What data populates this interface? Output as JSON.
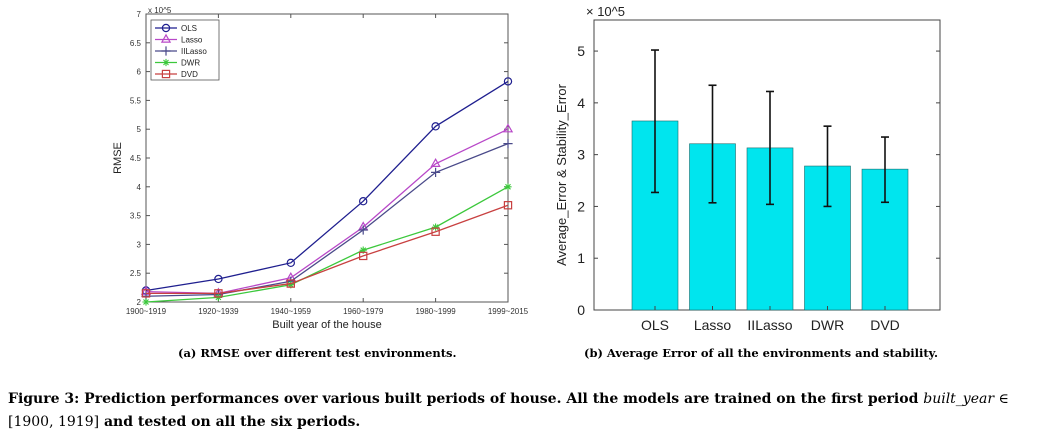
{
  "chart_data": [
    {
      "type": "line",
      "title": "",
      "xlabel": "Built year of the house",
      "ylabel": "RMSE",
      "exponent_label": "x 10^5",
      "categories": [
        "1900~1919",
        "1920~1939",
        "1940~1959",
        "1960~1979",
        "1980~1999",
        "1999~2015"
      ],
      "ylim": [
        2,
        7
      ],
      "yticks": [
        2,
        2.5,
        3,
        3.5,
        4,
        4.5,
        5,
        5.5,
        6,
        6.5,
        7
      ],
      "grid": false,
      "legend_position": "top-left",
      "series": [
        {
          "name": "OLS",
          "color": "#1f1f8f",
          "marker": "circle",
          "values": [
            2.2,
            2.4,
            2.68,
            3.75,
            5.05,
            5.83
          ]
        },
        {
          "name": "Lasso",
          "color": "#b848c8",
          "marker": "triangle",
          "values": [
            2.18,
            2.15,
            2.42,
            3.3,
            4.4,
            5.0
          ]
        },
        {
          "name": "IILasso",
          "color": "#4a4a8a",
          "marker": "plus",
          "values": [
            2.1,
            2.13,
            2.36,
            3.25,
            4.25,
            4.75
          ]
        },
        {
          "name": "DWR",
          "color": "#3cc83c",
          "marker": "star",
          "values": [
            2.0,
            2.08,
            2.3,
            2.9,
            3.3,
            4.0
          ]
        },
        {
          "name": "DVD",
          "color": "#c84040",
          "marker": "square",
          "values": [
            2.15,
            2.15,
            2.32,
            2.8,
            3.22,
            3.68
          ]
        }
      ]
    },
    {
      "type": "bar",
      "title": "",
      "xlabel": "",
      "ylabel": "Average_Error & Stability_Error",
      "exponent_label": "× 10^5",
      "categories": [
        "OLS",
        "Lasso",
        "IILasso",
        "DWR",
        "DVD"
      ],
      "values": [
        3.65,
        3.21,
        3.13,
        2.78,
        2.72
      ],
      "error_low": [
        2.27,
        2.07,
        2.04,
        2.0,
        2.08
      ],
      "error_high": [
        5.02,
        4.34,
        4.22,
        3.55,
        3.34
      ],
      "ylim": [
        0,
        5.6
      ],
      "yticks": [
        0,
        1,
        2,
        3,
        4,
        5
      ],
      "bar_color": "#00e5ee",
      "grid": false
    }
  ],
  "captions": {
    "a": "(a) RMSE over different test environments.",
    "b": "(b) Average Error of all the environments and stability.",
    "main_bold_1": "Figure 3: Prediction performances over various built periods of house. All the models are trained on the first period ",
    "main_ital": "built_year",
    "main_sym": " ∈",
    "main_plain": "[1900, 1919]",
    "main_bold_2": " and tested on all the six periods."
  }
}
